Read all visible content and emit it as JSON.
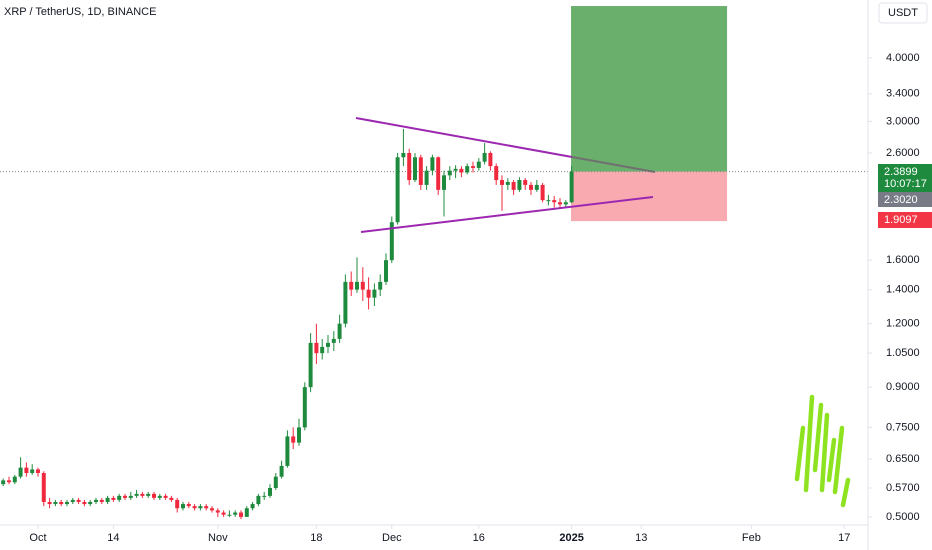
{
  "chart_data": {
    "type": "candlestick",
    "title": "XRP / TetherUS, 1D, BINANCE",
    "currency": "USDT",
    "log_scale": true,
    "up_color": "#1e8a3e",
    "down_color": "#f0293e",
    "ylim": [
      0.482,
      5.2
    ],
    "yticks": [
      {
        "value": 4,
        "label": "4.0000"
      },
      {
        "value": 3.4,
        "label": "3.4000"
      },
      {
        "value": 3,
        "label": "3.0000"
      },
      {
        "value": 2.6,
        "label": "2.6000"
      },
      {
        "value": 1.6,
        "label": "1.6000"
      },
      {
        "value": 1.4,
        "label": "1.4000"
      },
      {
        "value": 1.2,
        "label": "1.2000"
      },
      {
        "value": 1.05,
        "label": "1.0500"
      },
      {
        "value": 0.9,
        "label": "0.9000"
      },
      {
        "value": 0.75,
        "label": "0.7500"
      },
      {
        "value": 0.65,
        "label": "0.6500"
      },
      {
        "value": 0.57,
        "label": "0.5700"
      },
      {
        "value": 0.5,
        "label": "0.5000"
      }
    ],
    "xlim": [
      -6.55,
      143.1
    ],
    "xticks": [
      {
        "value": 0,
        "label": "Oct"
      },
      {
        "value": 13,
        "label": "14"
      },
      {
        "value": 31,
        "label": "Nov"
      },
      {
        "value": 48,
        "label": "18"
      },
      {
        "value": 61,
        "label": "Dec"
      },
      {
        "value": 76,
        "label": "16"
      },
      {
        "value": 92,
        "label": "2025"
      },
      {
        "value": 104,
        "label": "13"
      },
      {
        "value": 123,
        "label": "Feb"
      },
      {
        "value": 139,
        "label": "17"
      }
    ],
    "x": [
      -6,
      -5,
      -4,
      -3,
      -2,
      -1,
      0,
      1,
      2,
      3,
      4,
      5,
      6,
      7,
      8,
      9,
      10,
      11,
      12,
      13,
      14,
      15,
      16,
      17,
      18,
      19,
      20,
      21,
      22,
      23,
      24,
      25,
      26,
      27,
      28,
      29,
      30,
      31,
      32,
      33,
      34,
      35,
      36,
      37,
      38,
      39,
      40,
      41,
      42,
      43,
      44,
      45,
      46,
      47,
      48,
      49,
      50,
      51,
      52,
      53,
      54,
      55,
      56,
      57,
      58,
      59,
      60,
      61,
      62,
      63,
      64,
      65,
      66,
      67,
      68,
      69,
      70,
      71,
      72,
      73,
      74,
      75,
      76,
      77,
      78,
      79,
      80,
      81,
      82,
      83,
      84,
      85,
      86,
      87,
      88,
      89,
      90,
      91,
      92
    ],
    "ohlc": [
      [
        0.58,
        0.595,
        0.575,
        0.59
      ],
      [
        0.59,
        0.6,
        0.58,
        0.585
      ],
      [
        0.585,
        0.605,
        0.58,
        0.6
      ],
      [
        0.6,
        0.655,
        0.595,
        0.625
      ],
      [
        0.625,
        0.64,
        0.6,
        0.61
      ],
      [
        0.61,
        0.635,
        0.605,
        0.62
      ],
      [
        0.62,
        0.625,
        0.6,
        0.61
      ],
      [
        0.61,
        0.615,
        0.525,
        0.535
      ],
      [
        0.535,
        0.545,
        0.52,
        0.53
      ],
      [
        0.53,
        0.54,
        0.525,
        0.535
      ],
      [
        0.535,
        0.54,
        0.525,
        0.53
      ],
      [
        0.53,
        0.54,
        0.525,
        0.535
      ],
      [
        0.535,
        0.545,
        0.53,
        0.54
      ],
      [
        0.54,
        0.545,
        0.53,
        0.535
      ],
      [
        0.535,
        0.54,
        0.525,
        0.53
      ],
      [
        0.53,
        0.54,
        0.525,
        0.535
      ],
      [
        0.535,
        0.545,
        0.53,
        0.54
      ],
      [
        0.54,
        0.545,
        0.53,
        0.535
      ],
      [
        0.535,
        0.55,
        0.53,
        0.545
      ],
      [
        0.545,
        0.55,
        0.535,
        0.54
      ],
      [
        0.54,
        0.555,
        0.535,
        0.55
      ],
      [
        0.55,
        0.555,
        0.54,
        0.545
      ],
      [
        0.545,
        0.56,
        0.54,
        0.55
      ],
      [
        0.55,
        0.565,
        0.545,
        0.555
      ],
      [
        0.555,
        0.56,
        0.545,
        0.55
      ],
      [
        0.55,
        0.56,
        0.545,
        0.555
      ],
      [
        0.555,
        0.56,
        0.54,
        0.545
      ],
      [
        0.545,
        0.555,
        0.54,
        0.55
      ],
      [
        0.55,
        0.555,
        0.54,
        0.545
      ],
      [
        0.545,
        0.55,
        0.535,
        0.54
      ],
      [
        0.54,
        0.545,
        0.51,
        0.52
      ],
      [
        0.52,
        0.535,
        0.515,
        0.53
      ],
      [
        0.53,
        0.535,
        0.52,
        0.525
      ],
      [
        0.525,
        0.53,
        0.515,
        0.52
      ],
      [
        0.52,
        0.53,
        0.515,
        0.525
      ],
      [
        0.525,
        0.53,
        0.515,
        0.52
      ],
      [
        0.52,
        0.525,
        0.51,
        0.515
      ],
      [
        0.515,
        0.52,
        0.5,
        0.51
      ],
      [
        0.51,
        0.515,
        0.5,
        0.505
      ],
      [
        0.505,
        0.515,
        0.5,
        0.505
      ],
      [
        0.505,
        0.515,
        0.5,
        0.51
      ],
      [
        0.51,
        0.515,
        0.495,
        0.5
      ],
      [
        0.5,
        0.525,
        0.5,
        0.52
      ],
      [
        0.52,
        0.535,
        0.515,
        0.53
      ],
      [
        0.53,
        0.555,
        0.525,
        0.55
      ],
      [
        0.55,
        0.56,
        0.54,
        0.55
      ],
      [
        0.55,
        0.58,
        0.545,
        0.57
      ],
      [
        0.57,
        0.61,
        0.565,
        0.6
      ],
      [
        0.6,
        0.645,
        0.595,
        0.63
      ],
      [
        0.63,
        0.74,
        0.625,
        0.72
      ],
      [
        0.72,
        0.75,
        0.68,
        0.7
      ],
      [
        0.7,
        0.78,
        0.69,
        0.75
      ],
      [
        0.75,
        0.92,
        0.74,
        0.9
      ],
      [
        0.9,
        1.15,
        0.88,
        1.1
      ],
      [
        1.1,
        1.2,
        1.0,
        1.05
      ],
      [
        1.05,
        1.12,
        1.02,
        1.08
      ],
      [
        1.08,
        1.14,
        1.05,
        1.1
      ],
      [
        1.1,
        1.16,
        1.06,
        1.12
      ],
      [
        1.12,
        1.25,
        1.1,
        1.2
      ],
      [
        1.2,
        1.5,
        1.18,
        1.45
      ],
      [
        1.45,
        1.52,
        1.36,
        1.4
      ],
      [
        1.4,
        1.62,
        1.38,
        1.45
      ],
      [
        1.45,
        1.55,
        1.33,
        1.4
      ],
      [
        1.4,
        1.48,
        1.28,
        1.35
      ],
      [
        1.35,
        1.44,
        1.3,
        1.4
      ],
      [
        1.4,
        1.5,
        1.36,
        1.45
      ],
      [
        1.45,
        1.65,
        1.43,
        1.6
      ],
      [
        1.6,
        1.95,
        1.58,
        1.9
      ],
      [
        1.9,
        2.6,
        1.88,
        2.55
      ],
      [
        2.55,
        2.9,
        2.45,
        2.6
      ],
      [
        2.6,
        2.65,
        2.25,
        2.3
      ],
      [
        2.3,
        2.6,
        2.28,
        2.55
      ],
      [
        2.55,
        2.58,
        2.2,
        2.25
      ],
      [
        2.25,
        2.45,
        2.2,
        2.4
      ],
      [
        2.4,
        2.58,
        2.35,
        2.55
      ],
      [
        2.55,
        2.56,
        2.15,
        2.2
      ],
      [
        2.2,
        2.4,
        1.95,
        2.35
      ],
      [
        2.35,
        2.45,
        2.3,
        2.4
      ],
      [
        2.4,
        2.46,
        2.32,
        2.42
      ],
      [
        2.42,
        2.45,
        2.33,
        2.38
      ],
      [
        2.38,
        2.48,
        2.36,
        2.45
      ],
      [
        2.45,
        2.5,
        2.38,
        2.43
      ],
      [
        2.43,
        2.54,
        2.4,
        2.5
      ],
      [
        2.5,
        2.72,
        2.47,
        2.6
      ],
      [
        2.6,
        2.62,
        2.4,
        2.45
      ],
      [
        2.45,
        2.48,
        2.25,
        2.3
      ],
      [
        2.3,
        2.35,
        2.0,
        2.25
      ],
      [
        2.25,
        2.32,
        2.2,
        2.28
      ],
      [
        2.28,
        2.3,
        2.15,
        2.2
      ],
      [
        2.2,
        2.33,
        2.18,
        2.3
      ],
      [
        2.3,
        2.32,
        2.2,
        2.25
      ],
      [
        2.25,
        2.28,
        2.15,
        2.2
      ],
      [
        2.2,
        2.3,
        2.18,
        2.25
      ],
      [
        2.25,
        2.27,
        2.08,
        2.1
      ],
      [
        2.1,
        2.15,
        2.05,
        2.1
      ],
      [
        2.1,
        2.14,
        2.03,
        2.08
      ],
      [
        2.08,
        2.12,
        2.02,
        2.06
      ],
      [
        2.06,
        2.1,
        2.03,
        2.08
      ],
      [
        2.08,
        2.45,
        2.07,
        2.3899
      ]
    ],
    "position": {
      "entry": 2.3899,
      "target": 5.06,
      "stop": 1.9097,
      "start": 91.9,
      "end": 118.8,
      "profit_color": "#6aaf6c",
      "loss_color": "#f8aab0"
    },
    "price_tags": {
      "last": {
        "value": 2.3899,
        "label": "2.3899"
      },
      "countdown": "10:07:17",
      "mark": {
        "value": 2.302,
        "label": "2.3020"
      },
      "stop": {
        "value": 1.9097,
        "label": "1.9097"
      }
    }
  }
}
